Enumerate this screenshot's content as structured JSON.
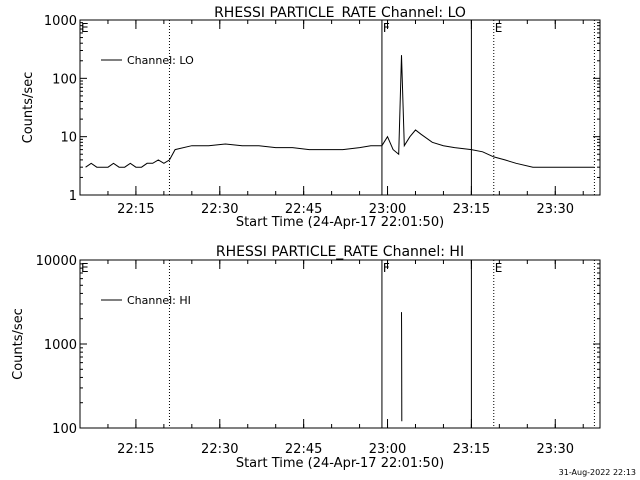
{
  "chart_data": [
    {
      "type": "line",
      "title": "RHESSI PARTICLE_RATE Channel: LO",
      "ylabel": "Counts/sec",
      "xlabel": "Start Time (24-Apr-17 22:01:50)",
      "yscale": "log",
      "ylim": [
        1,
        1000
      ],
      "xlim": [
        "22:05",
        "23:38"
      ],
      "yticks": [
        {
          "value": 1,
          "label": "1"
        },
        {
          "value": 10,
          "label": "10"
        },
        {
          "value": 100,
          "label": "100"
        },
        {
          "value": 1000,
          "label": "1000"
        }
      ],
      "xticks": [
        {
          "value": "22:15",
          "label": "22:15"
        },
        {
          "value": "22:30",
          "label": "22:30"
        },
        {
          "value": "22:45",
          "label": "22:45"
        },
        {
          "value": "23:00",
          "label": "23:00"
        },
        {
          "value": "23:15",
          "label": "23:15"
        },
        {
          "value": "23:30",
          "label": "23:30"
        }
      ],
      "legend": {
        "label": "Channel: LO",
        "position": "top-left"
      },
      "markers": [
        {
          "time": "22:05",
          "label": "E",
          "style": "dotted"
        },
        {
          "time": "22:21",
          "label": "",
          "style": "dotted"
        },
        {
          "time": "22:59",
          "label": "F",
          "style": "solid"
        },
        {
          "time": "23:15",
          "label": "",
          "style": "solid"
        },
        {
          "time": "23:19",
          "label": "E",
          "style": "dotted"
        },
        {
          "time": "23:37",
          "label": "",
          "style": "dotted"
        }
      ],
      "series": [
        {
          "name": "Channel: LO",
          "x": [
            "22:06",
            "22:07",
            "22:08",
            "22:09",
            "22:10",
            "22:11",
            "22:12",
            "22:13",
            "22:14",
            "22:15",
            "22:16",
            "22:17",
            "22:18",
            "22:19",
            "22:20",
            "22:21",
            "22:22",
            "22:25",
            "22:28",
            "22:31",
            "22:34",
            "22:37",
            "22:40",
            "22:43",
            "22:46",
            "22:49",
            "22:52",
            "22:55",
            "22:57",
            "22:59",
            "23:00",
            "23:01",
            "23:02",
            "23:02:30",
            "23:03",
            "23:04",
            "23:05",
            "23:06",
            "23:08",
            "23:10",
            "23:12",
            "23:15",
            "23:17",
            "23:19",
            "23:21",
            "23:23",
            "23:26",
            "23:29",
            "23:32",
            "23:34",
            "23:36",
            "23:37"
          ],
          "y": [
            3,
            3.5,
            3,
            3,
            3,
            3.5,
            3,
            3,
            3.5,
            3,
            3,
            3.5,
            3.5,
            4,
            3.5,
            4,
            6,
            7,
            7,
            7.5,
            7,
            7,
            6.5,
            6.5,
            6,
            6,
            6,
            6.5,
            7,
            7,
            10,
            6,
            5,
            250,
            7,
            10,
            13,
            11,
            8,
            7,
            6.5,
            6,
            5.5,
            4.5,
            4,
            3.5,
            3,
            3,
            3,
            3,
            3,
            3
          ]
        }
      ]
    },
    {
      "type": "line",
      "title": "RHESSI PARTICLE_RATE Channel: HI",
      "ylabel": "Counts/sec",
      "xlabel": "Start Time (24-Apr-17 22:01:50)",
      "yscale": "log",
      "ylim": [
        100,
        10000
      ],
      "xlim": [
        "22:05",
        "23:38"
      ],
      "yticks": [
        {
          "value": 100,
          "label": "100"
        },
        {
          "value": 1000,
          "label": "1000"
        },
        {
          "value": 10000,
          "label": "10000"
        }
      ],
      "xticks": [
        {
          "value": "22:15",
          "label": "22:15"
        },
        {
          "value": "22:30",
          "label": "22:30"
        },
        {
          "value": "22:45",
          "label": "22:45"
        },
        {
          "value": "23:00",
          "label": "23:00"
        },
        {
          "value": "23:15",
          "label": "23:15"
        },
        {
          "value": "23:30",
          "label": "23:30"
        }
      ],
      "legend": {
        "label": "Channel: HI",
        "position": "top-left"
      },
      "markers": [
        {
          "time": "22:05",
          "label": "E",
          "style": "dotted"
        },
        {
          "time": "22:21",
          "label": "",
          "style": "dotted"
        },
        {
          "time": "22:59",
          "label": "F",
          "style": "solid"
        },
        {
          "time": "23:15",
          "label": "",
          "style": "solid"
        },
        {
          "time": "23:19",
          "label": "E",
          "style": "dotted"
        },
        {
          "time": "23:37",
          "label": "",
          "style": "dotted"
        }
      ],
      "series": [
        {
          "name": "Channel: HI",
          "x": [
            "23:02:30",
            "23:02:31",
            "23:02:32",
            "23:02:33"
          ],
          "y": [
            2400,
            1500,
            500,
            120
          ]
        }
      ]
    }
  ],
  "footer": {
    "timestamp": "31-Aug-2022 22:13"
  }
}
